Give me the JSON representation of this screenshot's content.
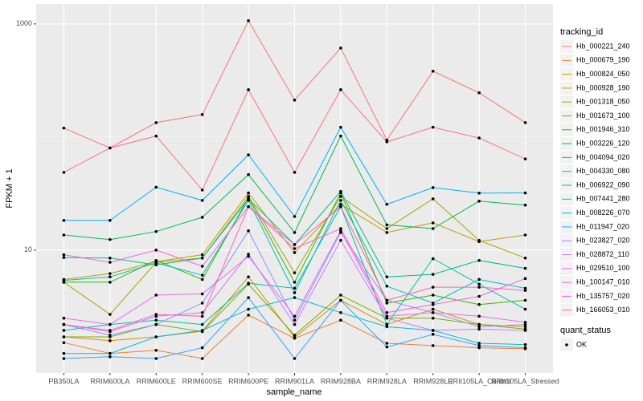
{
  "chart_data": {
    "type": "line",
    "x_label": "sample_name",
    "y_label": "FPKM + 1",
    "log_y": true,
    "grid": true,
    "ylim": [
      0.82,
      1500
    ],
    "yticks": [
      10,
      1000
    ],
    "categories": [
      "PB350LA",
      "RRIM600LA",
      "RRIM600LE",
      "RRIM600SE",
      "RRIM600PE",
      "RRIM901LA",
      "RRIM928BA",
      "RRIM928LA",
      "RRIM928LE",
      "RRII105LA_Control",
      "RRII105LA_Stressed"
    ],
    "legend_title": "tracking_id",
    "shape_legend": {
      "title": "quant_status",
      "labels": [
        "OK"
      ]
    },
    "point_color": "#000000",
    "series": [
      {
        "name": "Hb_000221_240",
        "color": "#F8766D",
        "values": [
          120,
          80,
          134,
          158,
          1067,
          212,
          612,
          94,
          382,
          246,
          134
        ]
      },
      {
        "name": "Hb_000679_190",
        "color": "#EA8331",
        "values": [
          1.52,
          1.22,
          1.3,
          1.1,
          2.66,
          1.66,
          2.4,
          1.5,
          1.43,
          1.37,
          1.34
        ]
      },
      {
        "name": "Hb_000824_050",
        "color": "#D89000",
        "values": [
          1.71,
          1.58,
          1.71,
          1.92,
          5.8,
          1.69,
          3.6,
          2.2,
          3.0,
          2.2,
          2.1
        ]
      },
      {
        "name": "Hb_000928_190",
        "color": "#C09B00",
        "values": [
          5.5,
          6.2,
          7.9,
          9.1,
          32,
          9.5,
          25.4,
          14.3,
          17.4,
          11.9,
          13.6
        ]
      },
      {
        "name": "Hb_001318_050",
        "color": "#A3A500",
        "values": [
          5.2,
          2.7,
          7.8,
          8.5,
          29.8,
          6.3,
          29.8,
          15.5,
          28.4,
          12.2,
          8.5
        ]
      },
      {
        "name": "Hb_001673_100",
        "color": "#7CAE00",
        "values": [
          1.71,
          1.71,
          2.2,
          1.9,
          5.0,
          1.77,
          4.0,
          2.5,
          2.5,
          2.2,
          2.0
        ]
      },
      {
        "name": "Hb_001946_310",
        "color": "#39B600",
        "values": [
          5.2,
          5.2,
          8.1,
          5.5,
          29,
          5.2,
          32,
          3.4,
          4.0,
          3.3,
          3.6
        ]
      },
      {
        "name": "Hb_003226_120",
        "color": "#00BB4E",
        "values": [
          13.6,
          12.4,
          14.6,
          19.5,
          46.5,
          14.3,
          102,
          16.7,
          15.5,
          27.1,
          25
        ]
      },
      {
        "name": "Hb_004094_020",
        "color": "#00BF7D",
        "values": [
          8.6,
          8.5,
          7.4,
          8.5,
          28.4,
          11.2,
          33,
          5.8,
          6.1,
          8.1,
          6.9
        ]
      },
      {
        "name": "Hb_004330_080",
        "color": "#00C1A3",
        "values": [
          1.95,
          2.2,
          2.4,
          2.2,
          5.1,
          4.6,
          24.2,
          2.2,
          8.4,
          5.0,
          3.0
        ]
      },
      {
        "name": "Hb_006922_090",
        "color": "#00BFC4",
        "values": [
          5.4,
          5.8,
          7.7,
          6.0,
          27.5,
          4.2,
          27.5,
          4.8,
          3.4,
          5.5,
          4.6
        ]
      },
      {
        "name": "Hb_007441_280",
        "color": "#00BAE0",
        "values": [
          1.22,
          1.22,
          1.71,
          1.95,
          3.0,
          3.8,
          2.8,
          2.1,
          1.95,
          1.5,
          1.46
        ]
      },
      {
        "name": "Hb_008226_070",
        "color": "#00B0F6",
        "values": [
          18.3,
          18.3,
          36,
          27.5,
          69.6,
          19.8,
          122,
          25.4,
          35.7,
          31.9,
          32
        ]
      },
      {
        "name": "Hb_011947_020",
        "color": "#35A2FF",
        "values": [
          1.1,
          1.14,
          1.1,
          1.37,
          3.8,
          1.1,
          3.6,
          1.39,
          1.8,
          1.43,
          1.37
        ]
      },
      {
        "name": "Hb_023827_020",
        "color": "#9590FF",
        "values": [
          2.2,
          1.77,
          2.2,
          3.4,
          14.8,
          2.4,
          14.3,
          3.6,
          2.8,
          2.1,
          2.2
        ]
      },
      {
        "name": "Hb_028872_110",
        "color": "#C77CFF",
        "values": [
          2.2,
          1.9,
          2.6,
          2.8,
          9.2,
          2.2,
          12.2,
          2.5,
          1.95,
          2.0,
          1.95
        ]
      },
      {
        "name": "Hb_029510_100",
        "color": "#E76BF3",
        "values": [
          2.5,
          2.2,
          4.0,
          4.1,
          8.8,
          2.6,
          14.8,
          2.6,
          2.8,
          2.6,
          2.3
        ]
      },
      {
        "name": "Hb_100147_010",
        "color": "#FA62DB",
        "values": [
          9.1,
          7.8,
          10,
          7.2,
          24.2,
          10.3,
          15.5,
          2.8,
          3.3,
          3.9,
          5.6
        ]
      },
      {
        "name": "Hb_135757_020",
        "color": "#FF62BC",
        "values": [
          2.2,
          1.95,
          2.7,
          2.6,
          24.2,
          11.2,
          24.2,
          3.6,
          4.7,
          4.7,
          4.4
        ]
      },
      {
        "name": "Hb_166053_010",
        "color": "#FF6C91",
        "values": [
          48.7,
          80,
          102,
          34,
          262,
          48.7,
          262,
          90.6,
          122,
          98,
          64
        ]
      }
    ]
  }
}
